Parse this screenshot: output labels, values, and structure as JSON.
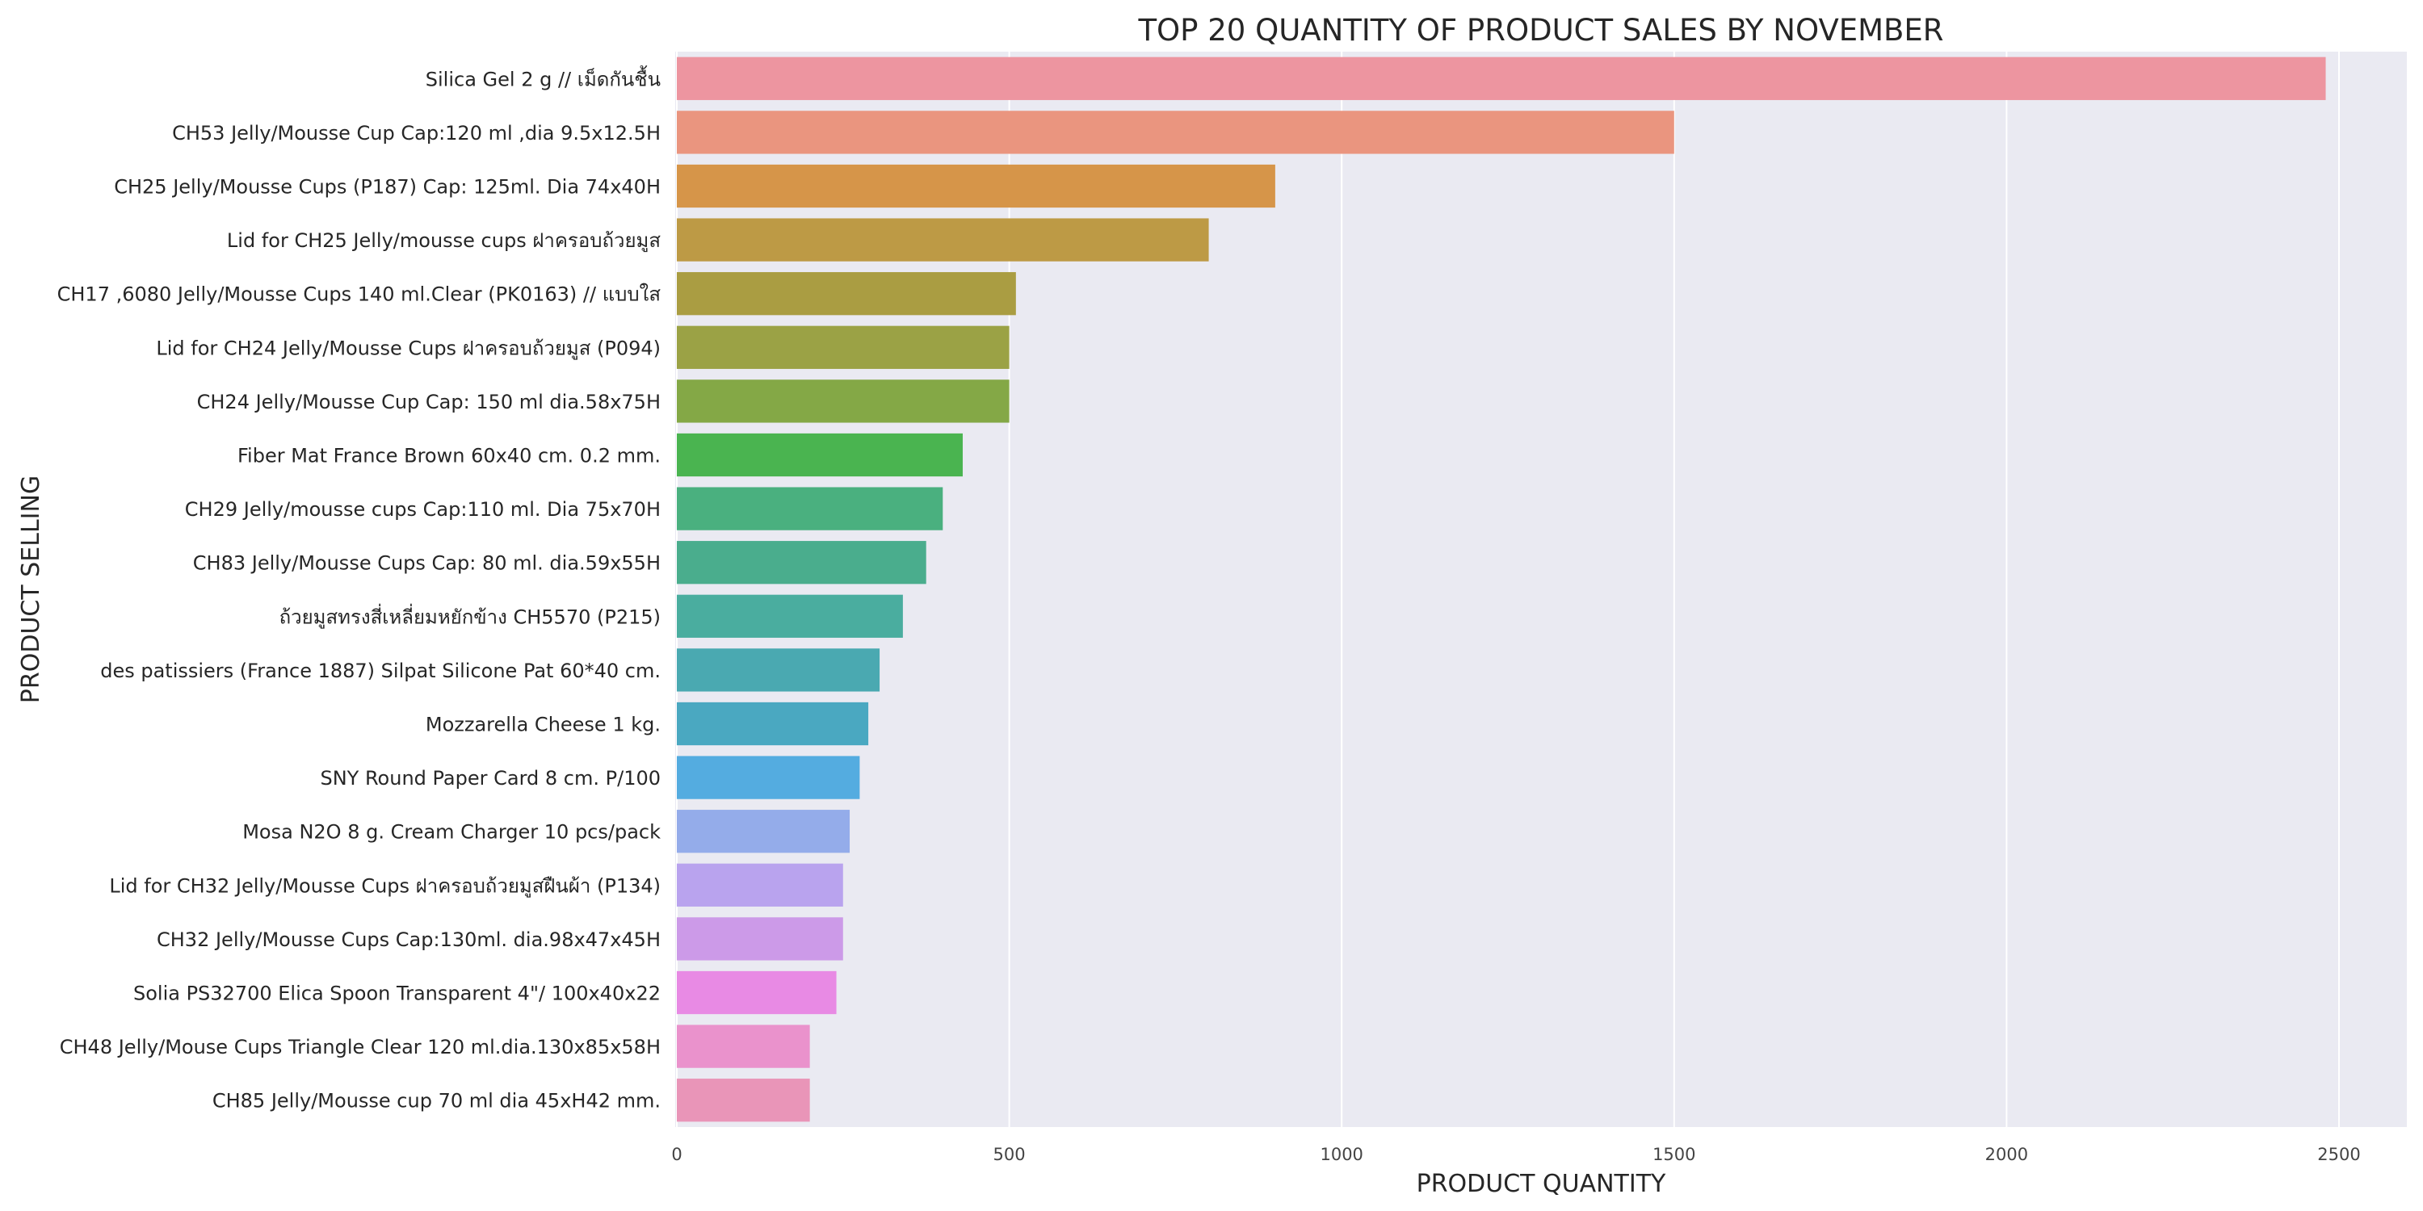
{
  "chart_data": {
    "type": "bar",
    "orientation": "horizontal",
    "title": "TOP 20 QUANTITY OF PRODUCT SALES BY NOVEMBER",
    "xlabel": "PRODUCT QUANTITY",
    "ylabel": "PRODUCT SELLING",
    "xlim": [
      0,
      2600
    ],
    "xticks": [
      0,
      500,
      1000,
      1500,
      2000,
      2500
    ],
    "grid": true,
    "legend": "none",
    "categories": [
      "Silica Gel 2 g // เม็ดกันชื้น",
      "CH53 Jelly/Mousse Cup Cap:120 ml ,dia 9.5x12.5H",
      "CH25  Jelly/Mousse Cups (P187) Cap: 125ml. Dia 74x40H",
      "Lid for CH25 Jelly/mousse cups ฝาครอบถ้วยมูส",
      "CH17 ,6080 Jelly/Mousse Cups 140 ml.Clear (PK0163) // แบบใส",
      "Lid for CH24 Jelly/Mousse Cups ฝาครอบถ้วยมูส (P094)",
      "CH24 Jelly/Mousse Cup Cap: 150 ml dia.58x75H",
      "Fiber Mat France Brown 60x40 cm. 0.2 mm.",
      "CH29 Jelly/mousse cups Cap:110 ml. Dia 75x70H",
      "CH83 Jelly/Mousse Cups Cap: 80 ml. dia.59x55H",
      "ถ้วยมูสทรงสี่เหลี่ยมหยักข้าง CH5570 (P215)",
      "des patissiers (France 1887) Silpat Silicone Pat 60*40 cm.",
      "Mozzarella Cheese 1 kg.",
      "SNY Round Paper Card 8 cm. P/100",
      "Mosa N2O 8 g. Cream Charger 10 pcs/pack",
      "Lid for CH32 Jelly/Mousse Cups ฝาครอบถ้วยมูสฝืนผ้า (P134)",
      "CH32 Jelly/Mousse Cups Cap:130ml. dia.98x47x45H",
      "Solia PS32700 Elica Spoon Transparent 4\"/ 100x40x22",
      "CH48  Jelly/Mouse Cups Triangle Clear 120 ml.dia.130x85x58H",
      "CH85 Jelly/Mousse cup 70 ml dia 45xH42 mm."
    ],
    "values": [
      2480,
      1500,
      900,
      800,
      510,
      500,
      500,
      430,
      400,
      375,
      340,
      305,
      288,
      275,
      260,
      250,
      250,
      240,
      200,
      200
    ],
    "colors": [
      "#ed95a0",
      "#ea957f",
      "#d69549",
      "#bd9a45",
      "#aa9d42",
      "#9ba245",
      "#84a846",
      "#4ab450",
      "#4ab07f",
      "#4aad8d",
      "#4aad9f",
      "#4aa9b1",
      "#4aa8c1",
      "#54ace0",
      "#94acea",
      "#b9a3ee",
      "#cc9ae8",
      "#e88ae4",
      "#ea92cc",
      "#e995b8"
    ]
  }
}
